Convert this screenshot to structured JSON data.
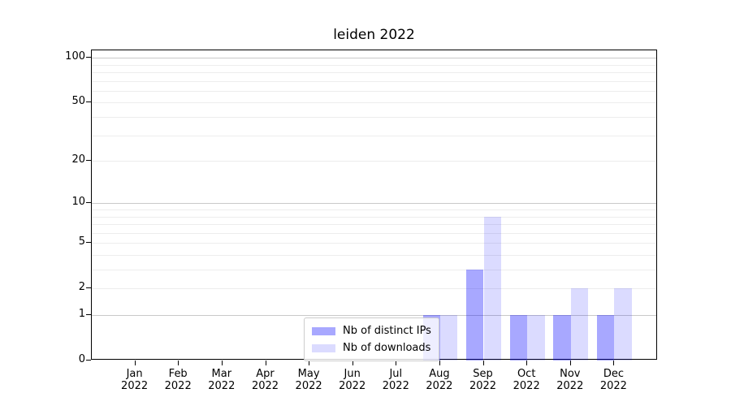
{
  "chart_data": {
    "type": "bar",
    "title": "leiden 2022",
    "categories": [
      {
        "month": "Jan",
        "year": "2022"
      },
      {
        "month": "Feb",
        "year": "2022"
      },
      {
        "month": "Mar",
        "year": "2022"
      },
      {
        "month": "Apr",
        "year": "2022"
      },
      {
        "month": "May",
        "year": "2022"
      },
      {
        "month": "Jun",
        "year": "2022"
      },
      {
        "month": "Jul",
        "year": "2022"
      },
      {
        "month": "Aug",
        "year": "2022"
      },
      {
        "month": "Sep",
        "year": "2022"
      },
      {
        "month": "Oct",
        "year": "2022"
      },
      {
        "month": "Nov",
        "year": "2022"
      },
      {
        "month": "Dec",
        "year": "2022"
      }
    ],
    "series": [
      {
        "name": "Nb of distinct IPs",
        "color": "#0000ff",
        "alpha": 0.34,
        "values": [
          0,
          0,
          0,
          0,
          0,
          0,
          0,
          1,
          3,
          1,
          1,
          1
        ]
      },
      {
        "name": "Nb of downloads",
        "color": "#0000ff",
        "alpha": 0.14,
        "values": [
          0,
          0,
          0,
          0,
          0,
          0,
          0,
          1,
          8,
          1,
          2,
          2
        ]
      }
    ],
    "y_scale": "log1p",
    "ylim": [
      0,
      112
    ],
    "y_tick_values": [
      0,
      1,
      2,
      5,
      10,
      20,
      50,
      100
    ],
    "y_tick_labels": [
      "0",
      "1",
      "2",
      "5",
      "10",
      "20",
      "50",
      "100"
    ],
    "y_grid_major": [
      1,
      10,
      100
    ],
    "y_grid_minor": [
      2,
      3,
      4,
      5,
      6,
      7,
      8,
      9,
      20,
      30,
      40,
      50,
      60,
      70,
      80,
      90
    ],
    "grid": {
      "major_color": "#c9c9c9",
      "minor_color": "#ededed"
    },
    "axis_color": "#000000",
    "text_color": "#000000",
    "legend": {
      "position": "lower center",
      "border_color": "#cccccc"
    }
  }
}
